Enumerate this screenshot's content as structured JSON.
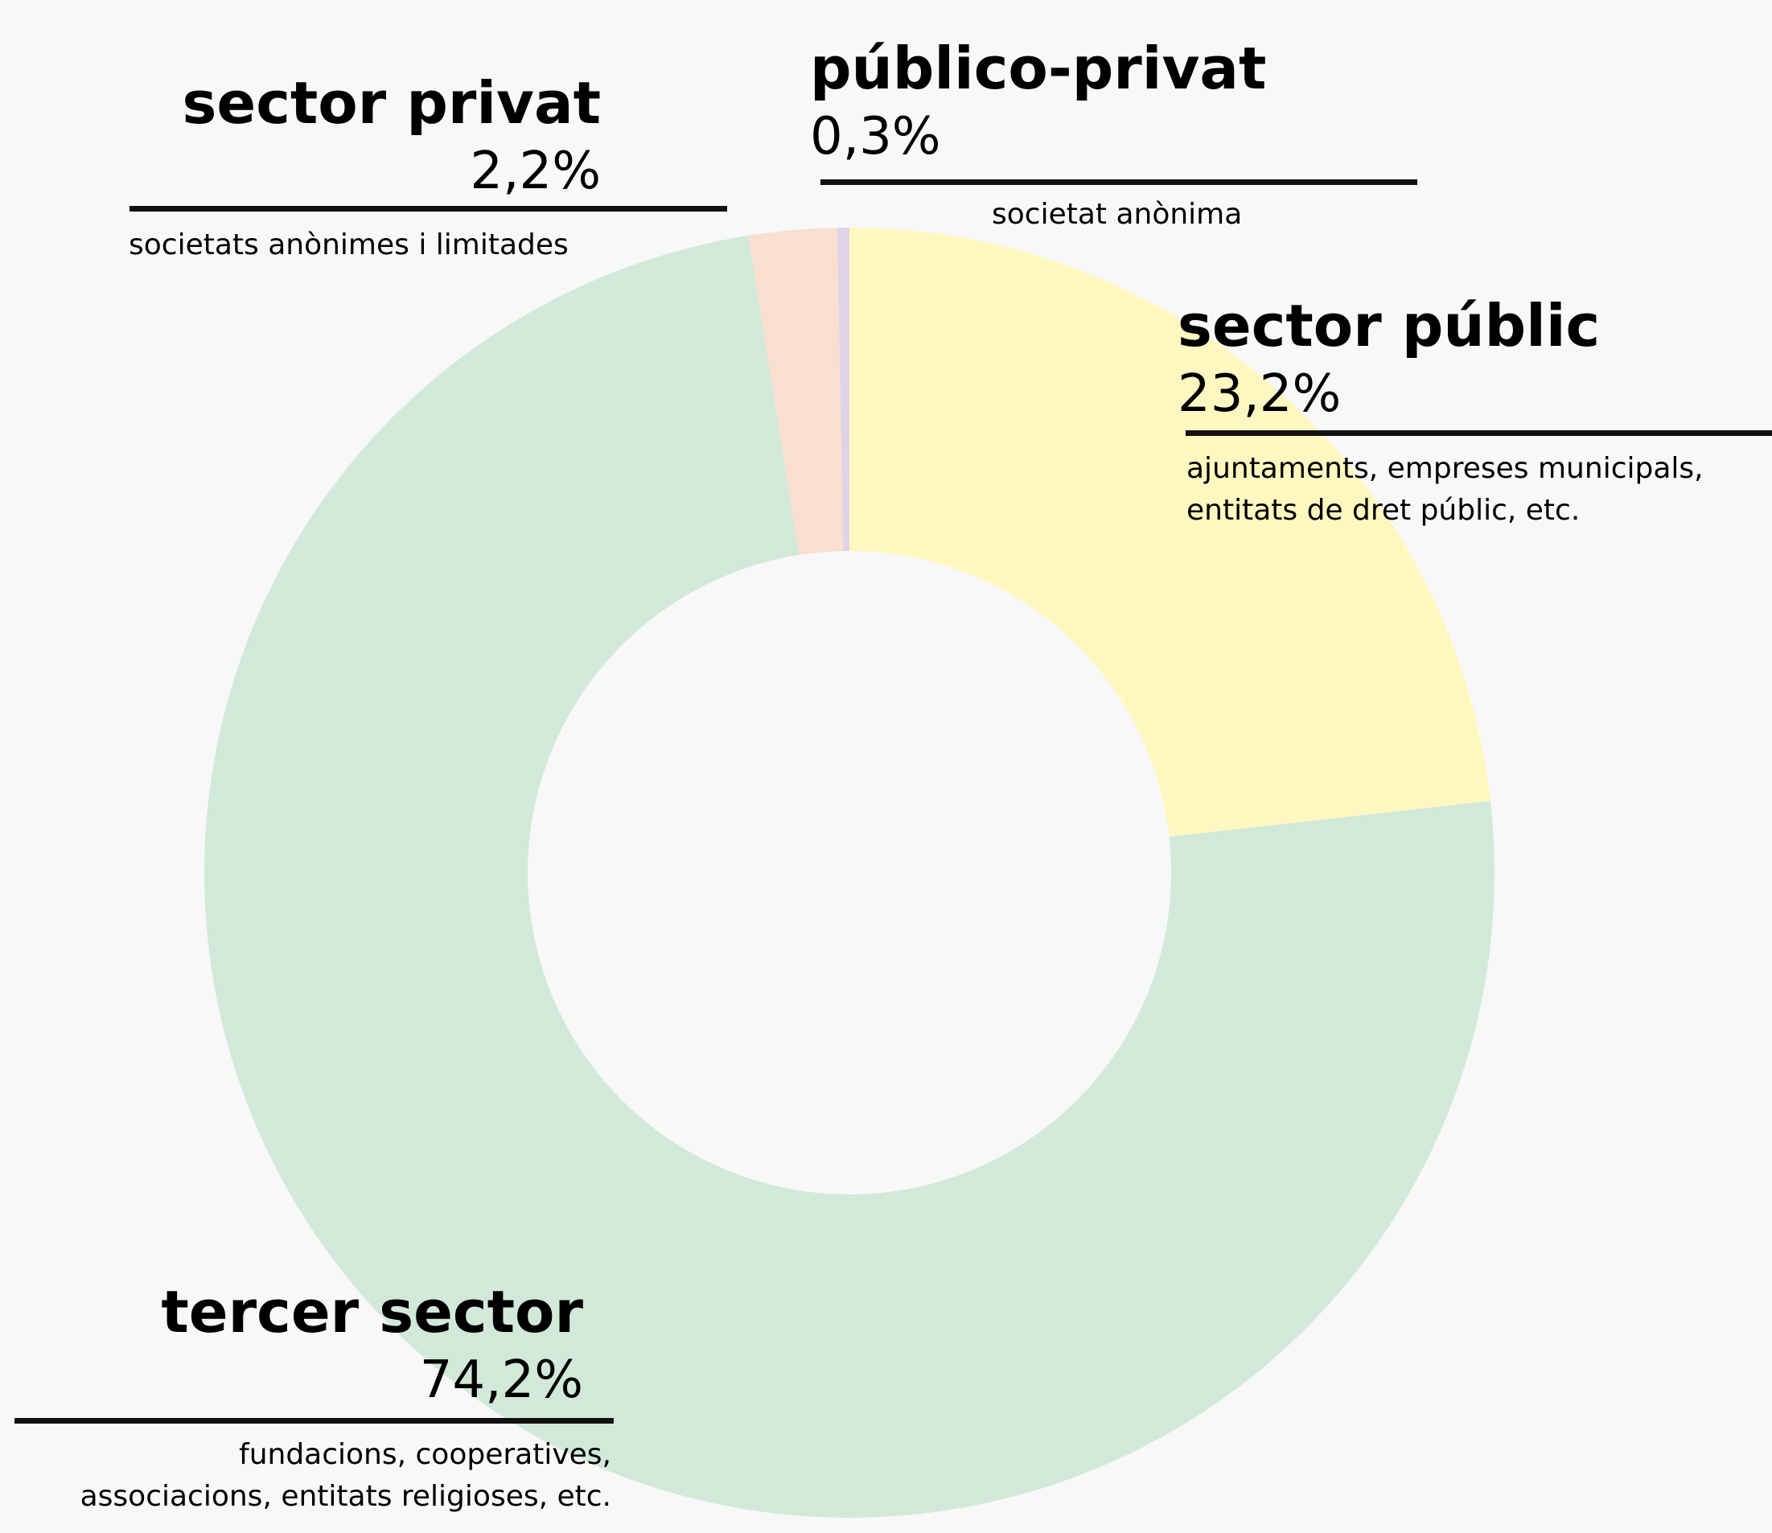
{
  "chart_data": {
    "type": "pie",
    "donut": true,
    "colors": {
      "sector_public": "#fef8c0",
      "tercer_sector": "#d2e9d9",
      "sector_privat": "#f8dfd0",
      "publico_privat": "#e0d3e8",
      "background": "#f8f8f8",
      "rule": "#111111"
    },
    "slices": [
      {
        "key": "sector_public",
        "label": "sector públic",
        "value": 23.2,
        "value_text": "23,2%",
        "description": [
          "ajuntaments, empreses municipals,",
          "entitats de dret públic, etc."
        ]
      },
      {
        "key": "tercer_sector",
        "label": "tercer sector",
        "value": 74.2,
        "value_text": "74,2%",
        "description": [
          "fundacions, cooperatives,",
          "associacions, entitats religioses, etc."
        ]
      },
      {
        "key": "sector_privat",
        "label": "sector privat",
        "value": 2.2,
        "value_text": "2,2%",
        "description": [
          "societats anònimes i limitades"
        ]
      },
      {
        "key": "publico_privat",
        "label": "público-privat",
        "value": 0.3,
        "value_text": "0,3%",
        "description": [
          "societat anònima"
        ]
      }
    ]
  }
}
